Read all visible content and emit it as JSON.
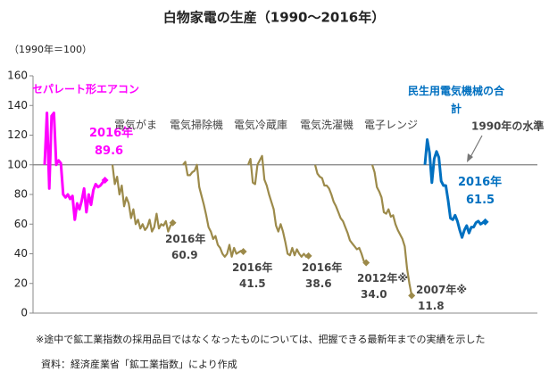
{
  "chart_data": {
    "type": "line",
    "title": "白物家電の生産（1990〜2016年）",
    "y_unit": "（1990年＝100）",
    "ylim": [
      0,
      160
    ],
    "yticks": [
      0,
      20,
      40,
      60,
      80,
      100,
      120,
      140,
      160
    ],
    "reference": {
      "value": 100,
      "label": "1990年の水準",
      "color": "#808080"
    },
    "series": [
      {
        "name": "セパレート形エアコン",
        "color": "#ff00ff",
        "end_year": "2016年",
        "values": [
          100,
          135,
          84,
          133,
          135,
          100,
          103,
          101,
          80,
          78,
          80,
          77,
          79,
          63,
          74,
          70,
          76,
          84,
          68,
          80,
          73,
          83,
          87,
          85,
          86,
          88,
          89.6
        ]
      },
      {
        "name": "電気がま",
        "color": "#9c8a4a",
        "end_year": "2016年",
        "values": [
          100,
          87,
          92,
          80,
          86,
          72,
          78,
          74,
          64,
          70,
          60,
          63,
          57,
          60,
          56,
          58,
          63,
          55,
          58,
          67,
          57,
          60,
          59,
          62,
          55,
          59,
          60.9
        ]
      },
      {
        "name": "電気掃除機",
        "color": "#9c8a4a",
        "end_year": "2016年",
        "values": [
          100,
          102,
          93,
          93,
          95,
          96,
          100,
          85,
          79,
          73,
          66,
          58,
          55,
          50,
          52,
          46,
          44,
          40,
          38,
          40,
          46,
          38,
          44,
          40,
          41,
          42,
          41.5
        ]
      },
      {
        "name": "電気冷蔵庫",
        "color": "#9c8a4a",
        "end_year": "2016年",
        "values": [
          100,
          104,
          88,
          87,
          100,
          103,
          106,
          90,
          86,
          80,
          75,
          70,
          59,
          55,
          60,
          55,
          48,
          40,
          39,
          44,
          39,
          43,
          40,
          38,
          40,
          38,
          38.6
        ]
      },
      {
        "name": "電気洗濯機",
        "color": "#9c8a4a",
        "end_year": "2012年※",
        "values": [
          100,
          94,
          92,
          91,
          86,
          86,
          84,
          80,
          75,
          72,
          68,
          64,
          62,
          58,
          54,
          49,
          47,
          45,
          43,
          44,
          40,
          35,
          34.0,
          null,
          null,
          null,
          null
        ],
        "value_labels": [
          null,
          null,
          null,
          null,
          null,
          null,
          null,
          null,
          null,
          null,
          null,
          null,
          null,
          null,
          null,
          null,
          null,
          null,
          null,
          null,
          null,
          null,
          "34.0",
          null,
          null,
          null,
          null
        ]
      },
      {
        "name": "電子レンジ",
        "color": "#9c8a4a",
        "end_year": "2007年※",
        "values": [
          100,
          95,
          85,
          82,
          78,
          68,
          67,
          70,
          65,
          66,
          60,
          56,
          53,
          50,
          45,
          30,
          20,
          11.8,
          null,
          null,
          null,
          null,
          null,
          null,
          null,
          null,
          null
        ]
      },
      {
        "name": "民生用電気機械の合計",
        "color": "#0070c0",
        "end_year": "2016年",
        "values": [
          100,
          117,
          108,
          88,
          104,
          109,
          105,
          89,
          86,
          86,
          76,
          64,
          63,
          66,
          62,
          56,
          51,
          56,
          59,
          54,
          58,
          58,
          61,
          62,
          60,
          61,
          61.5
        ]
      }
    ],
    "note": "※途中で鉱工業指数の採用品目ではなくなったものについては、把握できる最新年までの実績を示した",
    "source": "資料：経済産業省「鉱工業指数」により作成"
  }
}
